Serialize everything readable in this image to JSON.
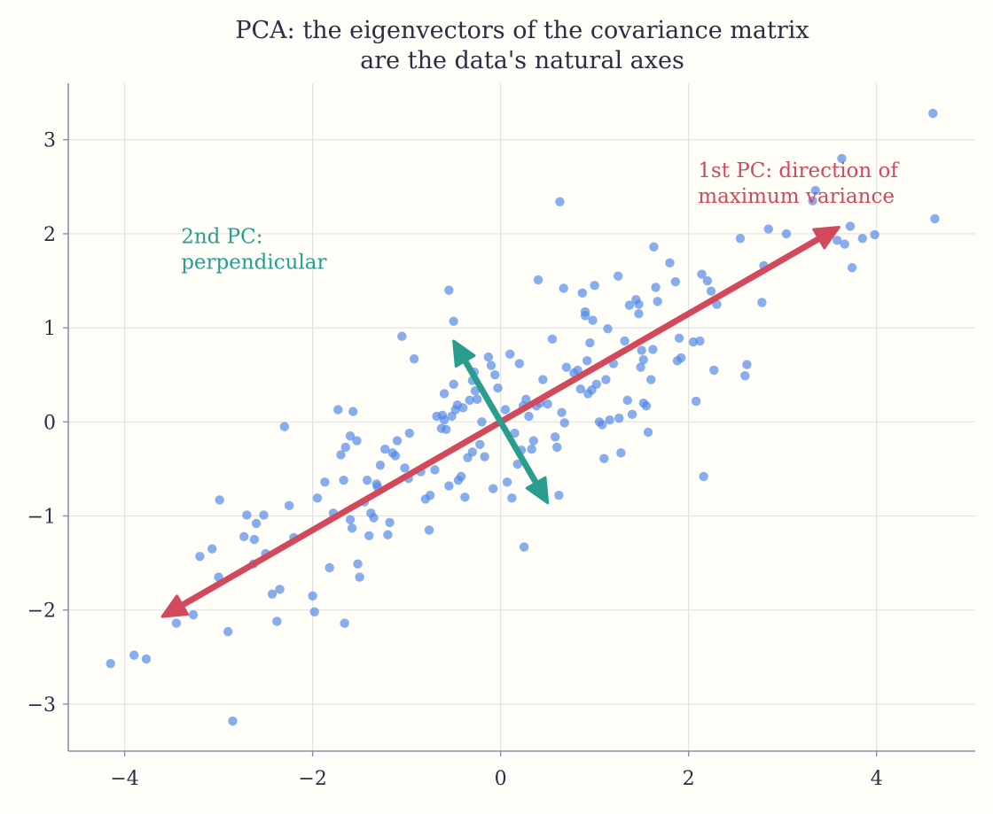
{
  "chart_data": {
    "type": "scatter",
    "title": "PCA: the eigenvectors of the covariance matrix",
    "subtitle": "are the data's natural axes",
    "xlabel": "",
    "ylabel": "",
    "xlim": [
      -4.6,
      5.05
    ],
    "ylim": [
      -3.5,
      3.6
    ],
    "x_ticks": [
      -4,
      -2,
      0,
      2,
      4
    ],
    "y_ticks": [
      -3,
      -2,
      -1,
      0,
      1,
      2,
      3
    ],
    "x_tick_labels": [
      "−4",
      "−2",
      "0",
      "2",
      "4"
    ],
    "y_tick_labels": [
      "−3",
      "−2",
      "−1",
      "0",
      "1",
      "2",
      "3"
    ],
    "grid": true,
    "point_color": "#4f86e8",
    "points": [
      [
        -4.15,
        -2.57
      ],
      [
        -3.9,
        -2.48
      ],
      [
        -3.77,
        -2.52
      ],
      [
        -3.45,
        -2.14
      ],
      [
        -3.27,
        -2.05
      ],
      [
        -2.85,
        -3.18
      ],
      [
        -2.9,
        -2.23
      ],
      [
        -3.2,
        -1.43
      ],
      [
        -3.07,
        -1.35
      ],
      [
        -3.0,
        -1.65
      ],
      [
        -2.99,
        -0.83
      ],
      [
        -2.73,
        -1.22
      ],
      [
        -2.7,
        -0.99
      ],
      [
        -2.63,
        -1.51
      ],
      [
        -2.62,
        -1.25
      ],
      [
        -2.6,
        -1.08
      ],
      [
        -2.52,
        -0.99
      ],
      [
        -2.5,
        -1.4
      ],
      [
        -2.43,
        -1.83
      ],
      [
        -2.38,
        -2.12
      ],
      [
        -2.35,
        -1.78
      ],
      [
        -2.3,
        -0.05
      ],
      [
        -2.25,
        -0.89
      ],
      [
        -2.2,
        -1.23
      ],
      [
        -2.0,
        -1.85
      ],
      [
        -1.98,
        -2.02
      ],
      [
        -1.95,
        -0.81
      ],
      [
        -1.87,
        -0.64
      ],
      [
        -1.82,
        -1.55
      ],
      [
        -1.78,
        -0.97
      ],
      [
        -1.73,
        0.13
      ],
      [
        -1.7,
        -0.35
      ],
      [
        -1.66,
        -2.14
      ],
      [
        -1.67,
        -0.62
      ],
      [
        -1.65,
        -0.27
      ],
      [
        -1.6,
        -0.15
      ],
      [
        -1.6,
        -1.04
      ],
      [
        -1.58,
        -1.13
      ],
      [
        -1.57,
        0.11
      ],
      [
        -1.53,
        -0.2
      ],
      [
        -1.52,
        -1.51
      ],
      [
        -1.5,
        -1.65
      ],
      [
        -1.45,
        -0.85
      ],
      [
        -1.42,
        -0.62
      ],
      [
        -1.4,
        -1.21
      ],
      [
        -1.38,
        -0.97
      ],
      [
        -1.35,
        -1.02
      ],
      [
        -1.32,
        -0.66
      ],
      [
        -1.31,
        -0.69
      ],
      [
        -1.28,
        -0.46
      ],
      [
        -1.23,
        -0.29
      ],
      [
        -1.2,
        -1.2
      ],
      [
        -1.18,
        -1.07
      ],
      [
        -1.15,
        -0.33
      ],
      [
        -1.12,
        -0.36
      ],
      [
        -1.1,
        -0.2
      ],
      [
        -1.05,
        0.91
      ],
      [
        -1.02,
        -0.49
      ],
      [
        -0.98,
        -0.6
      ],
      [
        -0.97,
        -0.12
      ],
      [
        -0.92,
        0.67
      ],
      [
        -0.85,
        -0.53
      ],
      [
        -0.8,
        -0.82
      ],
      [
        -0.75,
        -0.78
      ],
      [
        -0.76,
        -1.15
      ],
      [
        -0.7,
        -0.51
      ],
      [
        -0.68,
        0.06
      ],
      [
        -0.63,
        -0.07
      ],
      [
        -0.62,
        0.07
      ],
      [
        -0.6,
        0.3
      ],
      [
        -0.6,
        0.02
      ],
      [
        -0.58,
        -0.08
      ],
      [
        -0.55,
        -0.68
      ],
      [
        -0.55,
        1.4
      ],
      [
        -0.52,
        0.06
      ],
      [
        -0.5,
        0.4
      ],
      [
        -0.5,
        1.07
      ],
      [
        -0.48,
        0.13
      ],
      [
        -0.46,
        0.18
      ],
      [
        -0.45,
        -0.62
      ],
      [
        -0.42,
        -0.58
      ],
      [
        -0.4,
        0.15
      ],
      [
        -0.38,
        -0.8
      ],
      [
        -0.35,
        -0.38
      ],
      [
        -0.33,
        0.23
      ],
      [
        -0.3,
        0.44
      ],
      [
        -0.3,
        -0.32
      ],
      [
        -0.28,
        0.53
      ],
      [
        -0.27,
        0.33
      ],
      [
        -0.25,
        0.24
      ],
      [
        -0.22,
        -0.24
      ],
      [
        -0.2,
        0.0
      ],
      [
        -0.17,
        -0.37
      ],
      [
        -0.13,
        0.69
      ],
      [
        -0.1,
        0.6
      ],
      [
        -0.08,
        -0.71
      ],
      [
        -0.06,
        0.5
      ],
      [
        -0.03,
        0.36
      ],
      [
        0.05,
        0.13
      ],
      [
        0.07,
        -0.64
      ],
      [
        0.1,
        0.72
      ],
      [
        0.12,
        -0.81
      ],
      [
        0.15,
        -0.12
      ],
      [
        0.18,
        -0.45
      ],
      [
        0.2,
        0.62
      ],
      [
        0.22,
        -0.3
      ],
      [
        0.24,
        0.17
      ],
      [
        0.25,
        -1.33
      ],
      [
        0.27,
        0.24
      ],
      [
        0.3,
        0.06
      ],
      [
        0.33,
        -0.29
      ],
      [
        0.35,
        -0.2
      ],
      [
        0.38,
        0.17
      ],
      [
        0.4,
        1.51
      ],
      [
        0.42,
        0.2
      ],
      [
        0.45,
        0.45
      ],
      [
        0.5,
        0.19
      ],
      [
        0.55,
        0.88
      ],
      [
        0.58,
        -0.16
      ],
      [
        0.6,
        -0.27
      ],
      [
        0.62,
        -0.78
      ],
      [
        0.63,
        2.34
      ],
      [
        0.65,
        0.1
      ],
      [
        0.67,
        1.42
      ],
      [
        0.68,
        -0.01
      ],
      [
        0.7,
        0.58
      ],
      [
        0.78,
        0.52
      ],
      [
        0.82,
        0.55
      ],
      [
        0.85,
        0.35
      ],
      [
        0.87,
        1.37
      ],
      [
        0.9,
        1.13
      ],
      [
        0.9,
        1.17
      ],
      [
        0.92,
        0.65
      ],
      [
        0.93,
        0.3
      ],
      [
        0.95,
        0.84
      ],
      [
        0.97,
        0.34
      ],
      [
        0.98,
        1.08
      ],
      [
        1.0,
        1.45
      ],
      [
        1.02,
        0.4
      ],
      [
        1.05,
        0.0
      ],
      [
        1.08,
        -0.03
      ],
      [
        1.1,
        -0.39
      ],
      [
        1.12,
        0.45
      ],
      [
        1.14,
        0.99
      ],
      [
        1.16,
        0.02
      ],
      [
        1.2,
        0.62
      ],
      [
        1.25,
        1.55
      ],
      [
        1.26,
        0.04
      ],
      [
        1.28,
        -0.33
      ],
      [
        1.32,
        0.86
      ],
      [
        1.35,
        0.23
      ],
      [
        1.37,
        1.24
      ],
      [
        1.4,
        0.08
      ],
      [
        1.44,
        1.3
      ],
      [
        1.47,
        1.25
      ],
      [
        1.47,
        1.15
      ],
      [
        1.49,
        0.58
      ],
      [
        1.5,
        0.76
      ],
      [
        1.52,
        0.66
      ],
      [
        1.52,
        0.2
      ],
      [
        1.55,
        0.17
      ],
      [
        1.57,
        -0.11
      ],
      [
        1.6,
        0.45
      ],
      [
        1.62,
        0.77
      ],
      [
        1.63,
        1.86
      ],
      [
        1.65,
        1.43
      ],
      [
        1.67,
        1.28
      ],
      [
        1.8,
        1.69
      ],
      [
        1.86,
        1.49
      ],
      [
        1.88,
        0.65
      ],
      [
        1.9,
        0.89
      ],
      [
        1.92,
        0.68
      ],
      [
        2.05,
        0.85
      ],
      [
        2.08,
        0.22
      ],
      [
        2.12,
        0.86
      ],
      [
        2.14,
        1.57
      ],
      [
        2.16,
        -0.58
      ],
      [
        2.2,
        1.5
      ],
      [
        2.24,
        1.39
      ],
      [
        2.27,
        0.55
      ],
      [
        2.3,
        1.25
      ],
      [
        2.55,
        1.95
      ],
      [
        2.6,
        0.49
      ],
      [
        2.62,
        0.61
      ],
      [
        2.78,
        1.27
      ],
      [
        2.8,
        1.66
      ],
      [
        2.85,
        2.05
      ],
      [
        3.04,
        2.0
      ],
      [
        3.32,
        2.35
      ],
      [
        3.35,
        2.46
      ],
      [
        3.58,
        1.93
      ],
      [
        3.63,
        2.8
      ],
      [
        3.66,
        1.89
      ],
      [
        3.72,
        2.08
      ],
      [
        3.74,
        1.64
      ],
      [
        3.85,
        1.95
      ],
      [
        3.98,
        1.99
      ],
      [
        4.6,
        3.28
      ],
      [
        4.62,
        2.16
      ]
    ],
    "arrows": [
      {
        "name": "1st PC",
        "color": "#d1495b",
        "from": [
          0,
          0
        ],
        "to": [
          3.6,
          2.07
        ],
        "two_headed": true
      },
      {
        "name": "2nd PC",
        "color": "#2a9d8f",
        "from": [
          0,
          0
        ],
        "to": [
          -0.5,
          0.86
        ],
        "two_headed": true
      }
    ],
    "annotations": [
      {
        "lines": [
          "1st PC: direction of",
          "maximum variance"
        ],
        "x": 2.1,
        "y": 2.6,
        "color": "#d1495b"
      },
      {
        "lines": [
          "2nd PC:",
          "perpendicular"
        ],
        "x": -3.4,
        "y": 1.9,
        "color": "#2a9d8f"
      }
    ]
  }
}
